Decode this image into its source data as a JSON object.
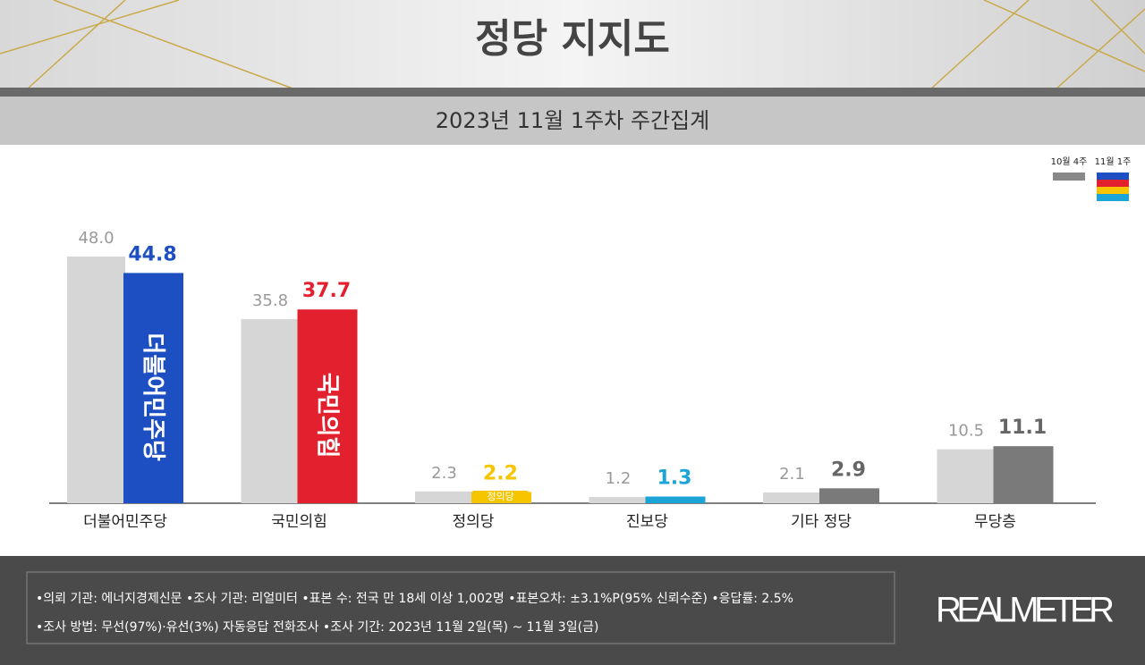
{
  "chart_data": {
    "type": "bar",
    "title": "정당 지지도",
    "subtitle": "2023년 11월 1주차 주간집계",
    "categories": [
      "더불어민주당",
      "국민의힘",
      "정의당",
      "진보당",
      "기타 정당",
      "무당층"
    ],
    "series": [
      {
        "name": "10월 4주",
        "color": "#d6d6d6",
        "values": [
          48.0,
          35.8,
          2.3,
          1.2,
          2.1,
          10.5
        ],
        "value_labels": [
          "48.0",
          "35.8",
          "2.3",
          "1.2",
          "2.1",
          "10.5"
        ]
      },
      {
        "name": "11월 1주",
        "colors": [
          "#1d4fc2",
          "#e3202e",
          "#f6c500",
          "#1aa5d6",
          "#7a7a7a",
          "#7a7a7a"
        ],
        "values": [
          44.8,
          37.7,
          2.2,
          1.3,
          2.9,
          11.1
        ]
      }
    ],
    "bar_logos": [
      "더불어민주당",
      "국민의힘",
      "정의당",
      null,
      null,
      null
    ],
    "ylim": [
      0,
      50
    ],
    "legend": "top-right",
    "notes": [
      "•의뢰 기관: 에너지경제신문  •조사 기관: 리얼미터 •표본 수: 전국 만 18세 이상 1,002명 •표본오차: ±3.1%P(95% 신뢰수준) •응답률: 2.5%",
      "•조사 방법: 무선(97%)·유선(3%) 자동응답 전화조사 •조사 기간: 2023년 11월 2일(목) ~ 11월 3일(금)"
    ],
    "brand": "REALMETER"
  }
}
